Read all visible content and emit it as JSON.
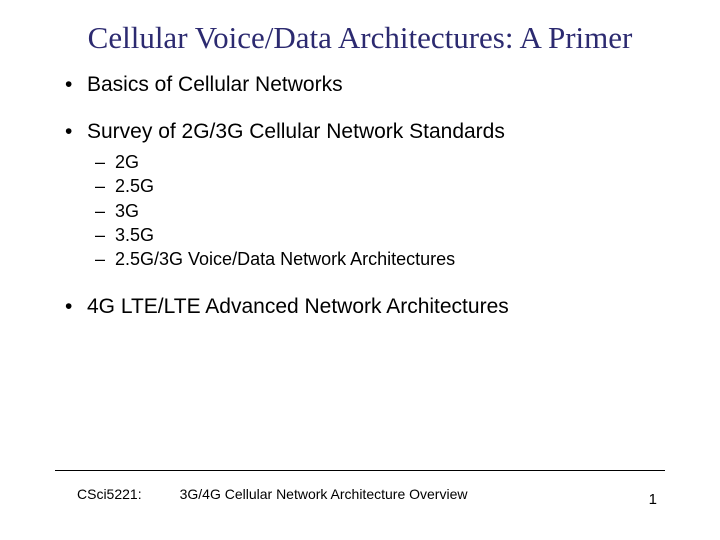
{
  "title": "Cellular Voice/Data Architectures: A Primer",
  "bullets": [
    {
      "text": "Basics of Cellular Networks",
      "subs": []
    },
    {
      "text": "Survey of 2G/3G Cellular Network Standards",
      "subs": [
        "2G",
        "2.5G",
        "3G",
        "3.5G",
        "2.5G/3G Voice/Data Network Architectures"
      ]
    },
    {
      "text": "4G LTE/LTE Advanced Network Architectures",
      "subs": []
    }
  ],
  "footer": {
    "course": "CSci5221:",
    "subtitle": "3G/4G Cellular Network Architecture Overview",
    "page": "1"
  },
  "colors": {
    "title": "#2c2a70",
    "text": "#000000",
    "background": "#ffffff"
  }
}
